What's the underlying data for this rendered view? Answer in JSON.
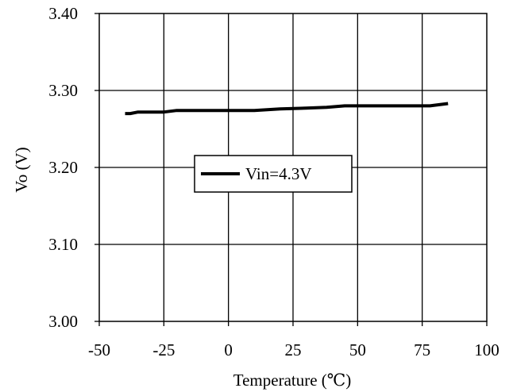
{
  "chart_data": {
    "type": "line",
    "xlabel": "Temperature (℃)",
    "ylabel": "Vo (V)",
    "xlim": [
      -50,
      100
    ],
    "ylim": [
      3.0,
      3.4
    ],
    "x_ticks": [
      "-50",
      "-25",
      "0",
      "25",
      "50",
      "75",
      "100"
    ],
    "y_ticks": [
      "3.00",
      "3.10",
      "3.20",
      "3.30",
      "3.40"
    ],
    "grid": true,
    "legend_position": "center-left",
    "series": [
      {
        "name": "Vin=4.3V",
        "color": "#000000",
        "x": [
          -40,
          -38,
          -35,
          -30,
          -25,
          -20,
          -10,
          0,
          10,
          20,
          30,
          38,
          45,
          55,
          65,
          78,
          85
        ],
        "y": [
          3.27,
          3.27,
          3.272,
          3.272,
          3.272,
          3.274,
          3.274,
          3.274,
          3.274,
          3.276,
          3.277,
          3.278,
          3.28,
          3.28,
          3.28,
          3.28,
          3.283
        ]
      }
    ]
  }
}
